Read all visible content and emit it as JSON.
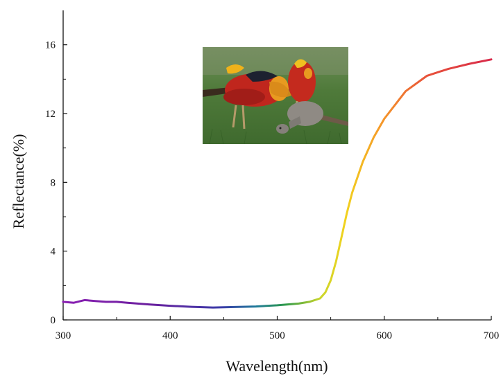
{
  "chart_data": {
    "type": "line",
    "title": "",
    "xlabel": "Wavelength(nm)",
    "ylabel": "Reflectance(%)",
    "xlim": [
      300,
      700
    ],
    "ylim": [
      0,
      18
    ],
    "xticks": [
      300,
      400,
      500,
      600,
      700
    ],
    "yticks": [
      0,
      4,
      8,
      12,
      16
    ],
    "xtick_labels": [
      "300",
      "400",
      "500",
      "600",
      "700"
    ],
    "ytick_labels": [
      "0",
      "4",
      "8",
      "12",
      "16"
    ],
    "grid": false,
    "legend": "none",
    "inset_image": "golden-pheasant-photo",
    "line_coloring": "visible-spectrum gradient by wavelength (violet to red)",
    "series": [
      {
        "x": [
          300,
          310,
          320,
          330,
          340,
          350,
          360,
          380,
          400,
          420,
          440,
          460,
          480,
          500,
          520,
          530,
          540,
          545,
          550,
          555,
          560,
          565,
          570,
          580,
          590,
          600,
          620,
          640,
          660,
          680,
          700
        ],
        "values": [
          1.05,
          1.0,
          1.15,
          1.1,
          1.05,
          1.05,
          1.0,
          0.9,
          0.82,
          0.76,
          0.72,
          0.75,
          0.78,
          0.85,
          0.95,
          1.05,
          1.25,
          1.6,
          2.3,
          3.4,
          4.8,
          6.2,
          7.4,
          9.2,
          10.6,
          11.7,
          13.3,
          14.2,
          14.6,
          14.9,
          15.15
        ]
      }
    ]
  }
}
